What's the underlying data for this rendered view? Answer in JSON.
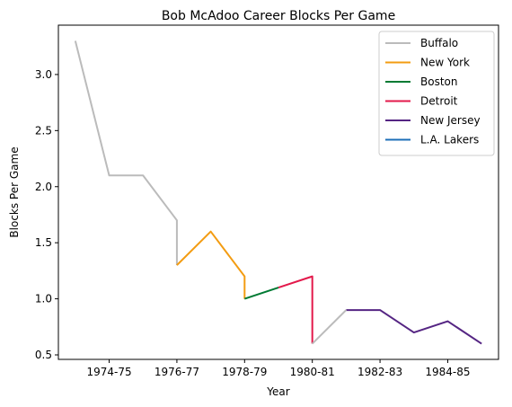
{
  "chart_data": {
    "type": "line",
    "title": "Bob McAdoo Career Blocks Per Game",
    "xlabel": "Year",
    "ylabel": "Blocks Per Game",
    "xlim": [
      -0.5,
      12.5
    ],
    "ylim": [
      0.46,
      3.44
    ],
    "x_ticks": [
      {
        "label": "1974-75",
        "x": 1
      },
      {
        "label": "1976-77",
        "x": 3
      },
      {
        "label": "1978-79",
        "x": 5
      },
      {
        "label": "1980-81",
        "x": 7
      },
      {
        "label": "1982-83",
        "x": 9
      },
      {
        "label": "1984-85",
        "x": 11
      }
    ],
    "y_ticks": [
      0.5,
      1.0,
      1.5,
      2.0,
      2.5,
      3.0
    ],
    "y_tick_labels": [
      "0.5",
      "1.0",
      "1.5",
      "2.0",
      "2.5",
      "3.0"
    ],
    "grid": false,
    "legend_position": "top-right",
    "series": [
      {
        "name": "Buffalo",
        "color": "#bbbbbb",
        "points": [
          [
            0,
            3.3
          ],
          [
            1,
            2.1
          ],
          [
            2,
            2.1
          ],
          [
            3,
            1.7
          ],
          [
            3,
            1.3
          ]
        ]
      },
      {
        "name": "New York",
        "color": "#f39c12",
        "points": [
          [
            3,
            1.3
          ],
          [
            4,
            1.6
          ],
          [
            5,
            1.2
          ],
          [
            5,
            1.0
          ]
        ]
      },
      {
        "name": "Boston",
        "color": "#007a33",
        "points": [
          [
            5,
            1.0
          ],
          [
            6,
            1.1
          ]
        ]
      },
      {
        "name": "Detroit",
        "color": "#e3194b",
        "points": [
          [
            6,
            1.1
          ],
          [
            7,
            1.2
          ],
          [
            7,
            0.6
          ]
        ]
      },
      {
        "name": "New Jersey",
        "color": "#552583",
        "points": [
          [
            8,
            0.9
          ],
          [
            9,
            0.9
          ],
          [
            10,
            0.7
          ],
          [
            11,
            0.8
          ],
          [
            12,
            0.6
          ]
        ]
      },
      {
        "name": "L.A. Lakers",
        "color": "#1d6fb8",
        "points": []
      }
    ],
    "extra_segments": [
      {
        "color": "#bbbbbb",
        "points": [
          [
            7,
            0.6
          ],
          [
            8,
            0.9
          ]
        ]
      }
    ]
  }
}
